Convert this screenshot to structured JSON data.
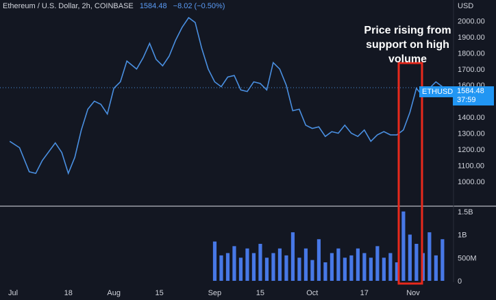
{
  "header": {
    "title": "Ethereum / U.S. Dollar, 2h, COINBASE",
    "price": "1584.48",
    "change": "−8.02 (−0.50%)"
  },
  "annotation": "Price rising from support on high volume",
  "current": {
    "symbol": "ETHUSD",
    "price": "1584.48",
    "countdown": "37:59"
  },
  "colors": {
    "background": "#131722",
    "line": "#4a90e2",
    "volume": "#4778e6",
    "highlight": "#e8291c",
    "tag": "#2196f3"
  },
  "chart_data": [
    {
      "type": "line",
      "ylabel": "USD",
      "ylim": [
        850,
        2130
      ],
      "y_ticks": [
        "2000.00",
        "1900.00",
        "1800.00",
        "1700.00",
        "1600.00",
        "1500.00",
        "1400.00",
        "1300.00",
        "1200.00",
        "1100.00",
        "1000.00"
      ],
      "x_ticks": [
        "Jul",
        "18",
        "Aug",
        "15",
        "Sep",
        "15",
        "Oct",
        "17",
        "Nov"
      ],
      "grid": false,
      "series": [
        {
          "x": [
            "2020-06-30",
            "2020-07-03",
            "2020-07-06",
            "2020-07-08",
            "2020-07-10",
            "2020-07-14",
            "2020-07-16",
            "2020-07-18",
            "2020-07-20",
            "2020-07-22",
            "2020-07-24",
            "2020-07-26",
            "2020-07-28",
            "2020-07-30",
            "2020-08-01",
            "2020-08-03",
            "2020-08-05",
            "2020-08-08",
            "2020-08-10",
            "2020-08-12",
            "2020-08-14",
            "2020-08-16",
            "2020-08-18",
            "2020-08-20",
            "2020-08-22",
            "2020-08-24",
            "2020-08-26",
            "2020-08-28",
            "2020-08-30",
            "2020-09-01",
            "2020-09-03",
            "2020-09-05",
            "2020-09-07",
            "2020-09-09",
            "2020-09-11",
            "2020-09-13",
            "2020-09-15",
            "2020-09-17",
            "2020-09-19",
            "2020-09-21",
            "2020-09-23",
            "2020-09-25",
            "2020-09-27",
            "2020-09-29",
            "2020-10-01",
            "2020-10-03",
            "2020-10-05",
            "2020-10-07",
            "2020-10-09",
            "2020-10-11",
            "2020-10-13",
            "2020-10-15",
            "2020-10-17",
            "2020-10-19",
            "2020-10-21",
            "2020-10-23",
            "2020-10-25",
            "2020-10-27",
            "2020-10-29",
            "2020-10-31",
            "2020-11-02",
            "2020-11-04",
            "2020-11-06",
            "2020-11-08",
            "2020-11-10"
          ],
          "values": [
            1250,
            1210,
            1060,
            1050,
            1130,
            1240,
            1180,
            1050,
            1150,
            1320,
            1450,
            1500,
            1480,
            1420,
            1580,
            1620,
            1750,
            1700,
            1770,
            1860,
            1760,
            1720,
            1780,
            1880,
            1960,
            2020,
            1990,
            1830,
            1700,
            1620,
            1590,
            1650,
            1660,
            1570,
            1560,
            1620,
            1610,
            1570,
            1740,
            1700,
            1600,
            1440,
            1450,
            1350,
            1330,
            1340,
            1280,
            1310,
            1300,
            1350,
            1300,
            1280,
            1320,
            1250,
            1290,
            1310,
            1290,
            1290,
            1320,
            1430,
            1580,
            1530,
            1580,
            1620,
            1590
          ]
        }
      ]
    },
    {
      "type": "area",
      "ylabel": "",
      "ylim": [
        0,
        1.6
      ],
      "y_ticks": [
        "1.5B",
        "1B",
        "500M",
        "0"
      ],
      "series": [
        {
          "x": [
            "2020-09-01",
            "2020-09-03",
            "2020-09-05",
            "2020-09-07",
            "2020-09-09",
            "2020-09-11",
            "2020-09-13",
            "2020-09-15",
            "2020-09-17",
            "2020-09-19",
            "2020-09-21",
            "2020-09-23",
            "2020-09-25",
            "2020-09-27",
            "2020-09-29",
            "2020-10-01",
            "2020-10-03",
            "2020-10-05",
            "2020-10-07",
            "2020-10-09",
            "2020-10-11",
            "2020-10-13",
            "2020-10-15",
            "2020-10-17",
            "2020-10-19",
            "2020-10-21",
            "2020-10-23",
            "2020-10-25",
            "2020-10-27",
            "2020-10-29",
            "2020-10-31",
            "2020-11-02",
            "2020-11-04",
            "2020-11-06",
            "2020-11-08",
            "2020-11-10"
          ],
          "values": [
            0.85,
            0.55,
            0.6,
            0.75,
            0.5,
            0.7,
            0.6,
            0.8,
            0.5,
            0.6,
            0.7,
            0.55,
            1.05,
            0.5,
            0.7,
            0.45,
            0.9,
            0.4,
            0.6,
            0.7,
            0.5,
            0.55,
            0.7,
            0.6,
            0.5,
            0.75,
            0.5,
            0.6,
            0.4,
            1.5,
            1.0,
            0.8,
            0.6,
            1.05,
            0.55,
            0.9
          ]
        }
      ]
    }
  ]
}
